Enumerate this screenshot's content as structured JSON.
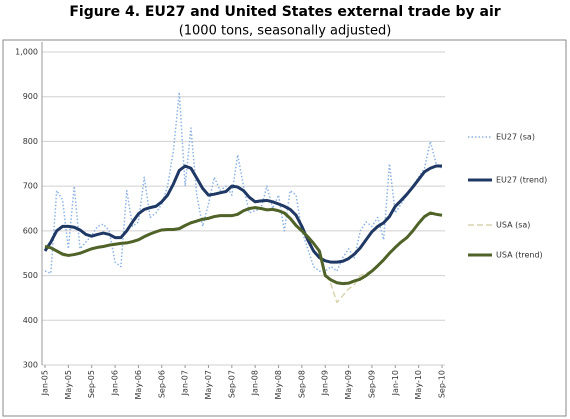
{
  "chart_data": {
    "type": "line",
    "title": "Figure 4.  EU27 and United States external trade by air",
    "subtitle": "(1000 tons, seasonally adjusted)",
    "categories": [
      "Jan-05",
      null,
      null,
      null,
      "May-05",
      null,
      null,
      null,
      "Sep-05",
      null,
      null,
      null,
      "Jan-06",
      null,
      null,
      null,
      "May-06",
      null,
      null,
      null,
      "Sep-06",
      null,
      null,
      null,
      "Jan-07",
      null,
      null,
      null,
      "May-07",
      null,
      null,
      null,
      "Sep-07",
      null,
      null,
      null,
      "Jan-08",
      null,
      null,
      null,
      "May-08",
      null,
      null,
      null,
      "Sep-08",
      null,
      null,
      null,
      "Jan-09",
      null,
      null,
      null,
      "May-09",
      null,
      null,
      null,
      "Sep-09",
      null,
      null,
      null,
      "Jan-10",
      null,
      null,
      null,
      "May-10",
      null,
      null,
      null,
      "Sep-10"
    ],
    "series": [
      {
        "name": "EU27 (sa)",
        "color": "#8db3e2",
        "style": "dotted",
        "values": [
          510,
          505,
          690,
          670,
          560,
          700,
          560,
          575,
          590,
          610,
          615,
          600,
          530,
          520,
          690,
          610,
          620,
          720,
          630,
          640,
          660,
          700,
          780,
          910,
          700,
          830,
          680,
          610,
          660,
          720,
          690,
          700,
          680,
          770,
          700,
          640,
          645,
          650,
          700,
          650,
          680,
          600,
          690,
          680,
          600,
          560,
          520,
          510,
          510,
          520,
          510,
          540,
          560,
          540,
          600,
          620,
          610,
          630,
          580,
          750,
          640,
          660,
          680,
          700,
          720,
          740,
          800,
          750,
          740
        ]
      },
      {
        "name": "EU27 (trend)",
        "color": "#1f3864",
        "style": "solid",
        "values": [
          555,
          575,
          600,
          610,
          610,
          608,
          602,
          592,
          588,
          592,
          595,
          592,
          585,
          585,
          600,
          620,
          638,
          648,
          652,
          655,
          665,
          680,
          705,
          735,
          745,
          740,
          718,
          695,
          680,
          682,
          685,
          688,
          700,
          698,
          690,
          675,
          665,
          667,
          668,
          665,
          660,
          655,
          648,
          635,
          610,
          580,
          555,
          540,
          533,
          530,
          530,
          532,
          538,
          548,
          562,
          580,
          598,
          610,
          618,
          632,
          655,
          668,
          682,
          698,
          715,
          732,
          740,
          745,
          745
        ]
      },
      {
        "name": "USA (sa)",
        "color": "#d9d4b0",
        "style": "dashed",
        "values": [
          568,
          560,
          553,
          545,
          543,
          548,
          552,
          556,
          558,
          565,
          566,
          570,
          568,
          573,
          575,
          574,
          582,
          585,
          595,
          596,
          603,
          602,
          604,
          606,
          610,
          620,
          620,
          628,
          626,
          633,
          635,
          632,
          636,
          636,
          646,
          648,
          654,
          649,
          648,
          646,
          646,
          638,
          630,
          610,
          602,
          585,
          575,
          550,
          505,
          480,
          440,
          455,
          470,
          480,
          500,
          505,
          512,
          520,
          536,
          548,
          565,
          573,
          588,
          598,
          618,
          630,
          642,
          636,
          634
        ]
      },
      {
        "name": "USA (trend)",
        "color": "#4f6228",
        "style": "solid",
        "values": [
          565,
          562,
          555,
          548,
          545,
          547,
          550,
          555,
          560,
          563,
          565,
          568,
          570,
          572,
          573,
          576,
          580,
          587,
          593,
          598,
          602,
          603,
          603,
          605,
          612,
          618,
          622,
          626,
          628,
          632,
          634,
          634,
          634,
          637,
          645,
          650,
          652,
          650,
          647,
          648,
          645,
          640,
          628,
          612,
          600,
          587,
          572,
          555,
          500,
          490,
          484,
          482,
          483,
          488,
          492,
          500,
          510,
          522,
          535,
          550,
          563,
          575,
          585,
          600,
          617,
          632,
          640,
          637,
          635
        ]
      }
    ],
    "ylim": [
      300,
      1000
    ],
    "yticks": [
      300,
      400,
      500,
      600,
      700,
      800,
      900,
      {
        "value": 1000,
        "label": "1,000"
      }
    ],
    "grid": true,
    "legend": "right"
  }
}
